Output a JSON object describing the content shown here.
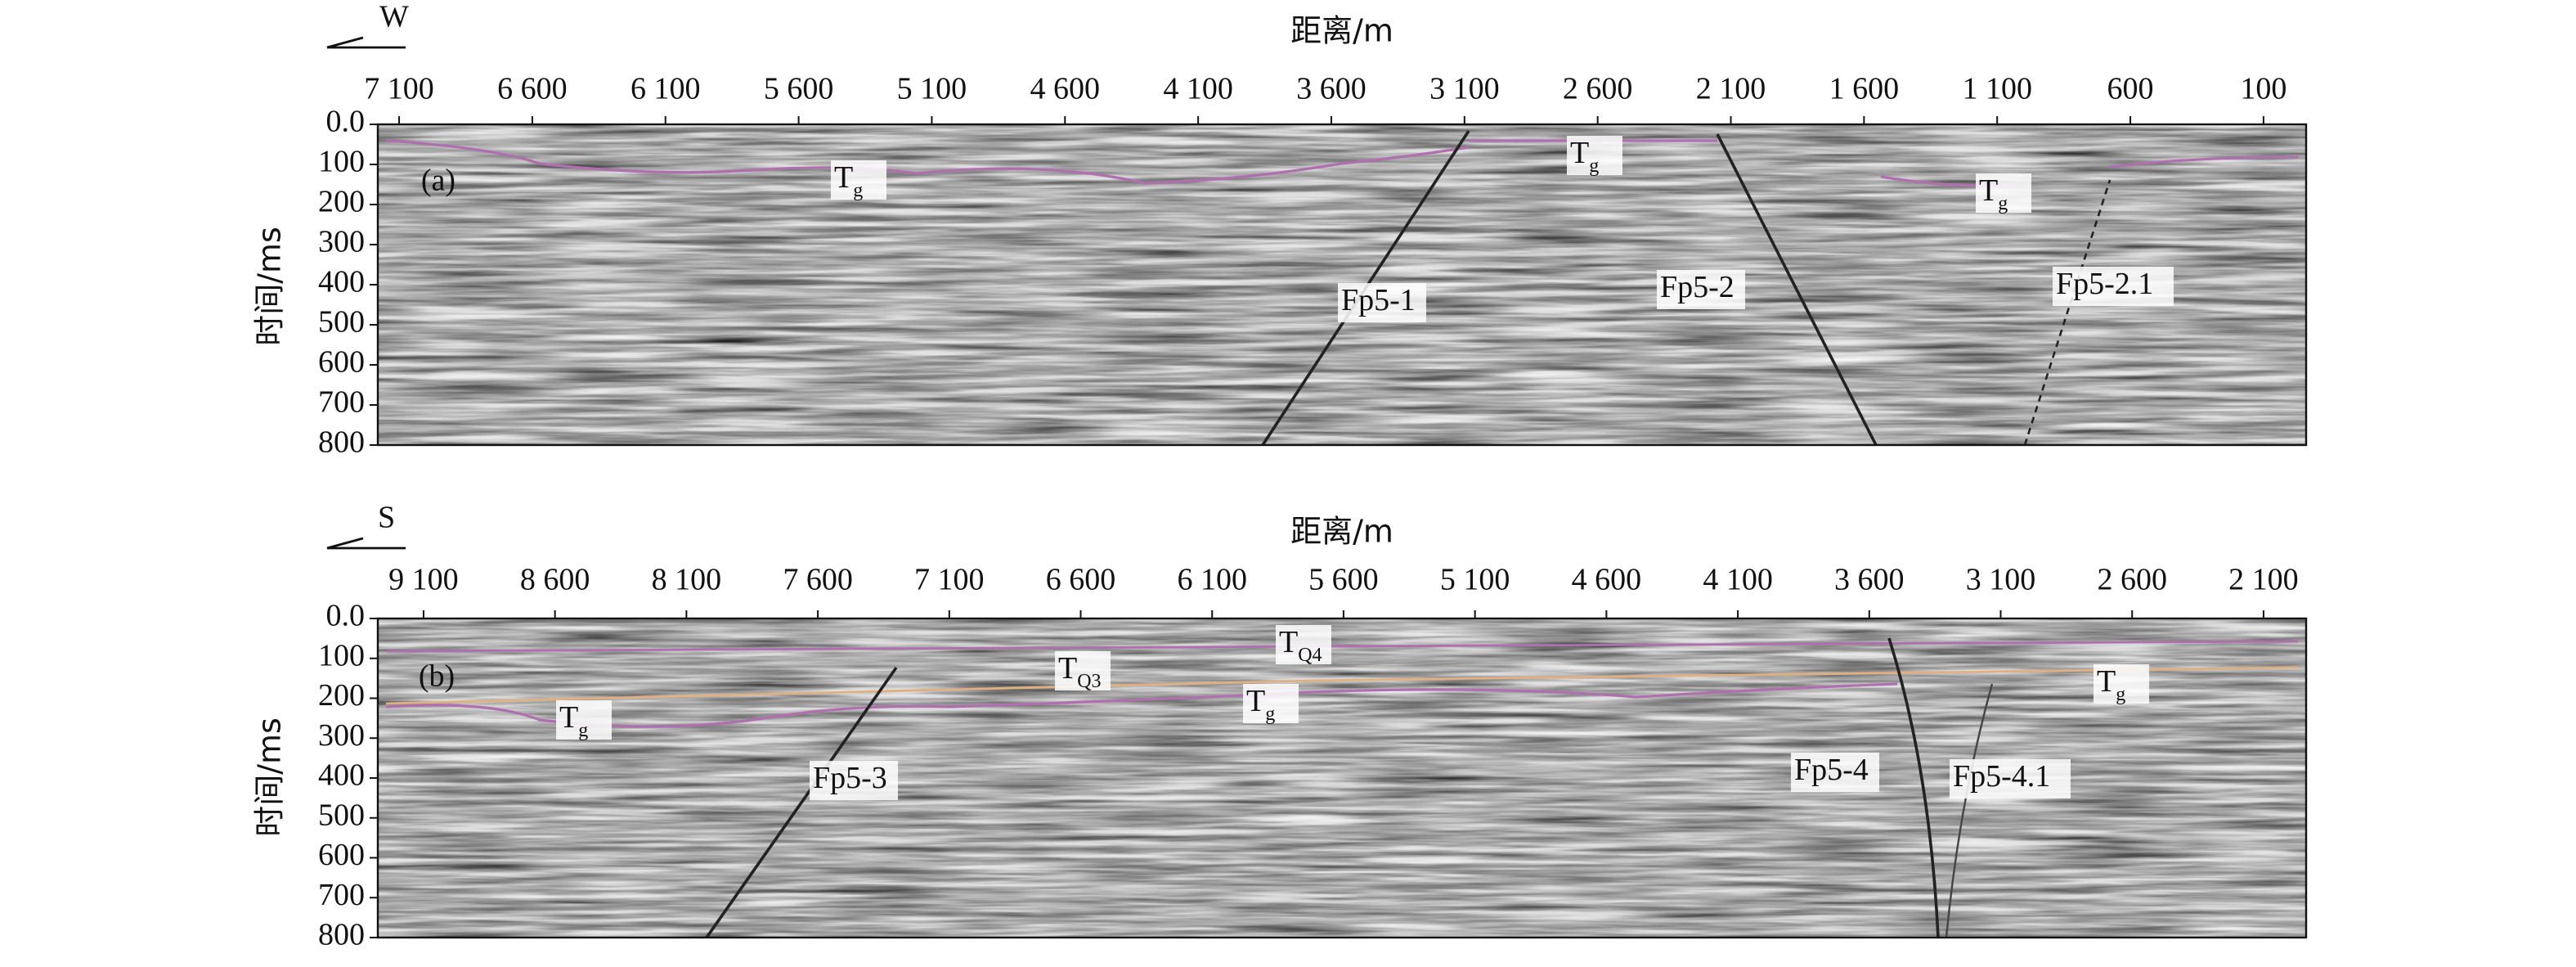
{
  "chart_data": [
    {
      "type": "seismic-section",
      "direction": "W",
      "panel_label": "(a)",
      "x_label": "距离/m",
      "y_label": "时间/ms",
      "xlim": [
        7180,
        -60
      ],
      "ylim": [
        0,
        800
      ],
      "xticks": [
        {
          "value": 7100,
          "label": "7 100"
        },
        {
          "value": 6600,
          "label": "6 600"
        },
        {
          "value": 6100,
          "label": "6 100"
        },
        {
          "value": 5600,
          "label": "5 600"
        },
        {
          "value": 5100,
          "label": "5 100"
        },
        {
          "value": 4600,
          "label": "4 600"
        },
        {
          "value": 4100,
          "label": "4 100"
        },
        {
          "value": 3600,
          "label": "3 600"
        },
        {
          "value": 3100,
          "label": "3 100"
        },
        {
          "value": 2600,
          "label": "2 600"
        },
        {
          "value": 2100,
          "label": "2 100"
        },
        {
          "value": 1600,
          "label": "1 600"
        },
        {
          "value": 1100,
          "label": "1 100"
        },
        600,
        100
      ],
      "yticks": [
        {
          "value": 0,
          "label": "0.0"
        },
        100,
        200,
        300,
        400,
        500,
        600,
        700,
        800
      ],
      "annotations": [
        {
          "main": "T",
          "sub": "g"
        },
        {
          "main": "T",
          "sub": "g"
        },
        {
          "main": "T",
          "sub": "g"
        },
        {
          "main": "Fp5-1"
        },
        {
          "main": "Fp5-2"
        },
        {
          "main": "Fp5-2.1"
        }
      ]
    },
    {
      "type": "seismic-section",
      "direction": "S",
      "panel_label": "(b)",
      "x_label": "距离/m",
      "y_label": "时间/ms",
      "xlim": [
        9274,
        1938
      ],
      "ylim": [
        0,
        800
      ],
      "xticks": [
        {
          "value": 9100,
          "label": "9 100"
        },
        {
          "value": 8600,
          "label": "8 600"
        },
        {
          "value": 8100,
          "label": "8 100"
        },
        {
          "value": 7600,
          "label": "7 600"
        },
        {
          "value": 7100,
          "label": "7 100"
        },
        {
          "value": 6600,
          "label": "6 600"
        },
        {
          "value": 6100,
          "label": "6 100"
        },
        {
          "value": 5600,
          "label": "5 600"
        },
        {
          "value": 5100,
          "label": "5 100"
        },
        {
          "value": 4600,
          "label": "4 600"
        },
        {
          "value": 4100,
          "label": "4 100"
        },
        {
          "value": 3600,
          "label": "3 600"
        },
        {
          "value": 3100,
          "label": "3 100"
        },
        {
          "value": 2600,
          "label": "2 600"
        },
        {
          "value": 2100,
          "label": "2 100"
        }
      ],
      "yticks": [
        {
          "value": 0,
          "label": "0.0"
        },
        100,
        200,
        300,
        400,
        500,
        600,
        700,
        800
      ],
      "annotations": [
        {
          "main": "T",
          "sub": "g"
        },
        {
          "main": "T",
          "sub": "Q3"
        },
        {
          "main": "T",
          "sub": "Q4"
        },
        {
          "main": "T",
          "sub": "g"
        },
        {
          "main": "T",
          "sub": "g"
        },
        {
          "main": "Fp5-3"
        },
        {
          "main": "Fp5-4"
        },
        {
          "main": "Fp5-4.1"
        }
      ]
    }
  ]
}
